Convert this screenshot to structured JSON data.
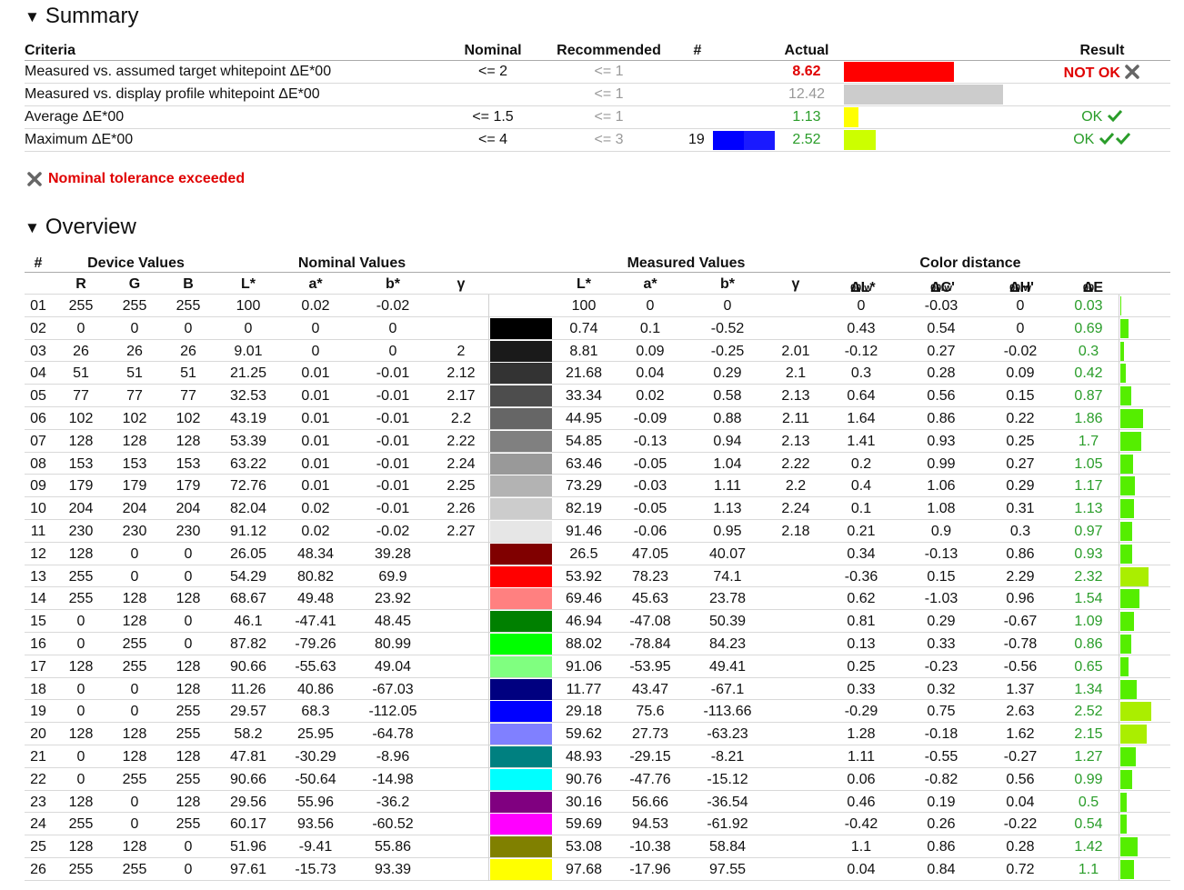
{
  "summary": {
    "heading": "Summary",
    "headers": {
      "criteria": "Criteria",
      "nominal": "Nominal",
      "recommended": "Recommended",
      "num": "#",
      "actual": "Actual",
      "result": "Result"
    },
    "rows": [
      {
        "criteria": "Measured vs. assumed target whitepoint ΔE*00",
        "nominal": "<= 2",
        "recommended": "<= 1",
        "num": "",
        "actual": "8.62",
        "result": "NOT OK",
        "bar_color": "#ff0000",
        "bar_fraction": 0.69
      },
      {
        "criteria": "Measured vs. display profile whitepoint ΔE*00",
        "nominal": "",
        "recommended": "<= 1",
        "num": "",
        "actual": "12.42",
        "result": "",
        "bar_color": "#cccccc",
        "bar_fraction": 1.0
      },
      {
        "criteria": "Average ΔE*00",
        "nominal": "<= 1.5",
        "recommended": "<= 1",
        "num": "",
        "actual": "1.13",
        "result": "OK",
        "bar_color": "#ffff00",
        "bar_fraction": 0.09
      },
      {
        "criteria": "Maximum ΔE*00",
        "nominal": "<= 4",
        "recommended": "<= 3",
        "num": "19",
        "actual": "2.52",
        "result": "OK",
        "bar_color": "#ccff00",
        "bar_fraction": 0.2
      }
    ],
    "notice": "Nominal tolerance exceeded"
  },
  "overview": {
    "heading": "Overview",
    "group_headers": {
      "num": "#",
      "device": "Device Values",
      "nominal": "Nominal Values",
      "measured": "Measured Values",
      "distance": "Color distance"
    },
    "sub_headers": {
      "r": "R",
      "g": "G",
      "b": "B",
      "nl": "L*",
      "na": "a*",
      "nb": "b*",
      "ngamma": "γ",
      "ml": "L*",
      "ma": "a*",
      "mb": "b*",
      "mgamma": "γ",
      "dl": "ΔL*",
      "dc": "ΔC'",
      "dh": "ΔH'",
      "de": "ΔE",
      "sub_w": "00/w",
      "sub_00": "00"
    },
    "rows": [
      {
        "n": "01",
        "r": "255",
        "g": "255",
        "b": "255",
        "nl": "100",
        "na": "0.02",
        "nb": "-0.02",
        "ng": "",
        "sw": "#ffffff",
        "ml": "100",
        "ma": "0",
        "mb": "0",
        "mg": "",
        "dl": "0",
        "dc": "-0.03",
        "dh": "0",
        "de": "0.03"
      },
      {
        "n": "02",
        "r": "0",
        "g": "0",
        "b": "0",
        "nl": "0",
        "na": "0",
        "nb": "0",
        "ng": "",
        "sw": "#000000",
        "ml": "0.74",
        "ma": "0.1",
        "mb": "-0.52",
        "mg": "",
        "dl": "0.43",
        "dc": "0.54",
        "dh": "0",
        "de": "0.69"
      },
      {
        "n": "03",
        "r": "26",
        "g": "26",
        "b": "26",
        "nl": "9.01",
        "na": "0",
        "nb": "0",
        "ng": "2",
        "sw": "#1a1a1a",
        "ml": "8.81",
        "ma": "0.09",
        "mb": "-0.25",
        "mg": "2.01",
        "dl": "-0.12",
        "dc": "0.27",
        "dh": "-0.02",
        "de": "0.3"
      },
      {
        "n": "04",
        "r": "51",
        "g": "51",
        "b": "51",
        "nl": "21.25",
        "na": "0.01",
        "nb": "-0.01",
        "ng": "2.12",
        "sw": "#333333",
        "ml": "21.68",
        "ma": "0.04",
        "mb": "0.29",
        "mg": "2.1",
        "dl": "0.3",
        "dc": "0.28",
        "dh": "0.09",
        "de": "0.42"
      },
      {
        "n": "05",
        "r": "77",
        "g": "77",
        "b": "77",
        "nl": "32.53",
        "na": "0.01",
        "nb": "-0.01",
        "ng": "2.17",
        "sw": "#4d4d4d",
        "ml": "33.34",
        "ma": "0.02",
        "mb": "0.58",
        "mg": "2.13",
        "dl": "0.64",
        "dc": "0.56",
        "dh": "0.15",
        "de": "0.87"
      },
      {
        "n": "06",
        "r": "102",
        "g": "102",
        "b": "102",
        "nl": "43.19",
        "na": "0.01",
        "nb": "-0.01",
        "ng": "2.2",
        "sw": "#666666",
        "ml": "44.95",
        "ma": "-0.09",
        "mb": "0.88",
        "mg": "2.11",
        "dl": "1.64",
        "dc": "0.86",
        "dh": "0.22",
        "de": "1.86"
      },
      {
        "n": "07",
        "r": "128",
        "g": "128",
        "b": "128",
        "nl": "53.39",
        "na": "0.01",
        "nb": "-0.01",
        "ng": "2.22",
        "sw": "#808080",
        "ml": "54.85",
        "ma": "-0.13",
        "mb": "0.94",
        "mg": "2.13",
        "dl": "1.41",
        "dc": "0.93",
        "dh": "0.25",
        "de": "1.7"
      },
      {
        "n": "08",
        "r": "153",
        "g": "153",
        "b": "153",
        "nl": "63.22",
        "na": "0.01",
        "nb": "-0.01",
        "ng": "2.24",
        "sw": "#999999",
        "ml": "63.46",
        "ma": "-0.05",
        "mb": "1.04",
        "mg": "2.22",
        "dl": "0.2",
        "dc": "0.99",
        "dh": "0.27",
        "de": "1.05"
      },
      {
        "n": "09",
        "r": "179",
        "g": "179",
        "b": "179",
        "nl": "72.76",
        "na": "0.01",
        "nb": "-0.01",
        "ng": "2.25",
        "sw": "#b3b3b3",
        "ml": "73.29",
        "ma": "-0.03",
        "mb": "1.11",
        "mg": "2.2",
        "dl": "0.4",
        "dc": "1.06",
        "dh": "0.29",
        "de": "1.17"
      },
      {
        "n": "10",
        "r": "204",
        "g": "204",
        "b": "204",
        "nl": "82.04",
        "na": "0.02",
        "nb": "-0.01",
        "ng": "2.26",
        "sw": "#cccccc",
        "ml": "82.19",
        "ma": "-0.05",
        "mb": "1.13",
        "mg": "2.24",
        "dl": "0.1",
        "dc": "1.08",
        "dh": "0.31",
        "de": "1.13"
      },
      {
        "n": "11",
        "r": "230",
        "g": "230",
        "b": "230",
        "nl": "91.12",
        "na": "0.02",
        "nb": "-0.02",
        "ng": "2.27",
        "sw": "#e6e6e6",
        "ml": "91.46",
        "ma": "-0.06",
        "mb": "0.95",
        "mg": "2.18",
        "dl": "0.21",
        "dc": "0.9",
        "dh": "0.3",
        "de": "0.97"
      },
      {
        "n": "12",
        "r": "128",
        "g": "0",
        "b": "0",
        "nl": "26.05",
        "na": "48.34",
        "nb": "39.28",
        "ng": "",
        "sw": "#800000",
        "ml": "26.5",
        "ma": "47.05",
        "mb": "40.07",
        "mg": "",
        "dl": "0.34",
        "dc": "-0.13",
        "dh": "0.86",
        "de": "0.93"
      },
      {
        "n": "13",
        "r": "255",
        "g": "0",
        "b": "0",
        "nl": "54.29",
        "na": "80.82",
        "nb": "69.9",
        "ng": "",
        "sw": "#ff0000",
        "ml": "53.92",
        "ma": "78.23",
        "mb": "74.1",
        "mg": "",
        "dl": "-0.36",
        "dc": "0.15",
        "dh": "2.29",
        "de": "2.32"
      },
      {
        "n": "14",
        "r": "255",
        "g": "128",
        "b": "128",
        "nl": "68.67",
        "na": "49.48",
        "nb": "23.92",
        "ng": "",
        "sw": "#ff8080",
        "ml": "69.46",
        "ma": "45.63",
        "mb": "23.78",
        "mg": "",
        "dl": "0.62",
        "dc": "-1.03",
        "dh": "0.96",
        "de": "1.54"
      },
      {
        "n": "15",
        "r": "0",
        "g": "128",
        "b": "0",
        "nl": "46.1",
        "na": "-47.41",
        "nb": "48.45",
        "ng": "",
        "sw": "#008000",
        "ml": "46.94",
        "ma": "-47.08",
        "mb": "50.39",
        "mg": "",
        "dl": "0.81",
        "dc": "0.29",
        "dh": "-0.67",
        "de": "1.09"
      },
      {
        "n": "16",
        "r": "0",
        "g": "255",
        "b": "0",
        "nl": "87.82",
        "na": "-79.26",
        "nb": "80.99",
        "ng": "",
        "sw": "#00ff00",
        "ml": "88.02",
        "ma": "-78.84",
        "mb": "84.23",
        "mg": "",
        "dl": "0.13",
        "dc": "0.33",
        "dh": "-0.78",
        "de": "0.86"
      },
      {
        "n": "17",
        "r": "128",
        "g": "255",
        "b": "128",
        "nl": "90.66",
        "na": "-55.63",
        "nb": "49.04",
        "ng": "",
        "sw": "#80ff80",
        "ml": "91.06",
        "ma": "-53.95",
        "mb": "49.41",
        "mg": "",
        "dl": "0.25",
        "dc": "-0.23",
        "dh": "-0.56",
        "de": "0.65"
      },
      {
        "n": "18",
        "r": "0",
        "g": "0",
        "b": "128",
        "nl": "11.26",
        "na": "40.86",
        "nb": "-67.03",
        "ng": "",
        "sw": "#000080",
        "ml": "11.77",
        "ma": "43.47",
        "mb": "-67.1",
        "mg": "",
        "dl": "0.33",
        "dc": "0.32",
        "dh": "1.37",
        "de": "1.34"
      },
      {
        "n": "19",
        "r": "0",
        "g": "0",
        "b": "255",
        "nl": "29.57",
        "na": "68.3",
        "nb": "-112.05",
        "ng": "",
        "sw": "#0000ff",
        "ml": "29.18",
        "ma": "75.6",
        "mb": "-113.66",
        "mg": "",
        "dl": "-0.29",
        "dc": "0.75",
        "dh": "2.63",
        "de": "2.52"
      },
      {
        "n": "20",
        "r": "128",
        "g": "128",
        "b": "255",
        "nl": "58.2",
        "na": "25.95",
        "nb": "-64.78",
        "ng": "",
        "sw": "#8080ff",
        "ml": "59.62",
        "ma": "27.73",
        "mb": "-63.23",
        "mg": "",
        "dl": "1.28",
        "dc": "-0.18",
        "dh": "1.62",
        "de": "2.15"
      },
      {
        "n": "21",
        "r": "0",
        "g": "128",
        "b": "128",
        "nl": "47.81",
        "na": "-30.29",
        "nb": "-8.96",
        "ng": "",
        "sw": "#008080",
        "ml": "48.93",
        "ma": "-29.15",
        "mb": "-8.21",
        "mg": "",
        "dl": "1.11",
        "dc": "-0.55",
        "dh": "-0.27",
        "de": "1.27"
      },
      {
        "n": "22",
        "r": "0",
        "g": "255",
        "b": "255",
        "nl": "90.66",
        "na": "-50.64",
        "nb": "-14.98",
        "ng": "",
        "sw": "#00ffff",
        "ml": "90.76",
        "ma": "-47.76",
        "mb": "-15.12",
        "mg": "",
        "dl": "0.06",
        "dc": "-0.82",
        "dh": "0.56",
        "de": "0.99"
      },
      {
        "n": "23",
        "r": "128",
        "g": "0",
        "b": "128",
        "nl": "29.56",
        "na": "55.96",
        "nb": "-36.2",
        "ng": "",
        "sw": "#800080",
        "ml": "30.16",
        "ma": "56.66",
        "mb": "-36.54",
        "mg": "",
        "dl": "0.46",
        "dc": "0.19",
        "dh": "0.04",
        "de": "0.5"
      },
      {
        "n": "24",
        "r": "255",
        "g": "0",
        "b": "255",
        "nl": "60.17",
        "na": "93.56",
        "nb": "-60.52",
        "ng": "",
        "sw": "#ff00ff",
        "ml": "59.69",
        "ma": "94.53",
        "mb": "-61.92",
        "mg": "",
        "dl": "-0.42",
        "dc": "0.26",
        "dh": "-0.22",
        "de": "0.54"
      },
      {
        "n": "25",
        "r": "128",
        "g": "128",
        "b": "0",
        "nl": "51.96",
        "na": "-9.41",
        "nb": "55.86",
        "ng": "",
        "sw": "#808000",
        "ml": "53.08",
        "ma": "-10.38",
        "mb": "58.84",
        "mg": "",
        "dl": "1.1",
        "dc": "0.86",
        "dh": "0.28",
        "de": "1.42"
      },
      {
        "n": "26",
        "r": "255",
        "g": "255",
        "b": "0",
        "nl": "97.61",
        "na": "-15.73",
        "nb": "93.39",
        "ng": "",
        "sw": "#ffff00",
        "ml": "97.68",
        "ma": "-17.96",
        "mb": "97.55",
        "mg": "",
        "dl": "0.04",
        "dc": "0.84",
        "dh": "0.72",
        "de": "1.1"
      }
    ]
  }
}
